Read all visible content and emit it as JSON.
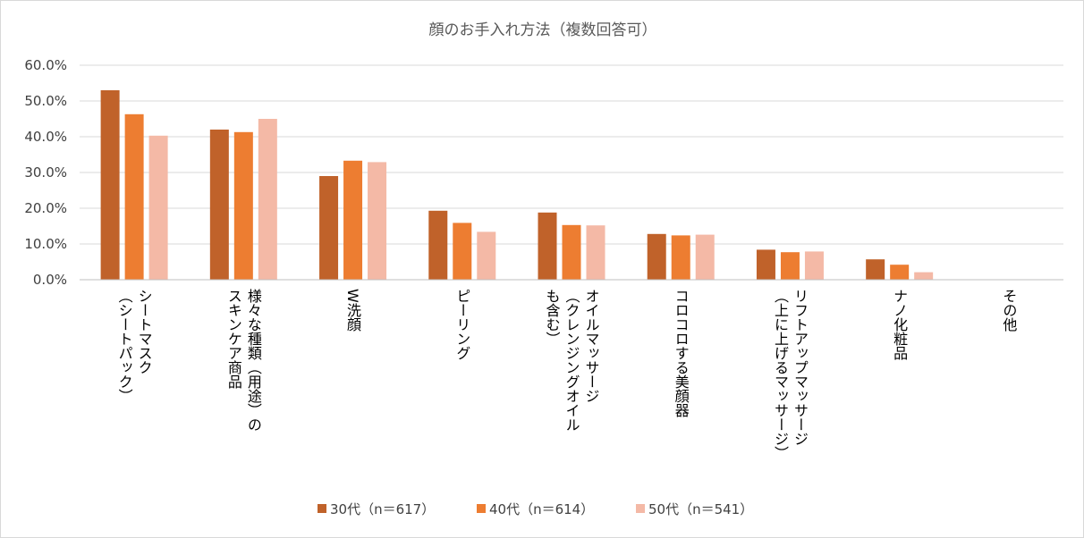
{
  "chart_data": {
    "type": "bar",
    "title": "顔のお手入れ方法（複数回答可）",
    "xlabel": "",
    "ylabel": "",
    "ylim": [
      0,
      60
    ],
    "yticks": [
      "0.0%",
      "10.0%",
      "20.0%",
      "30.0%",
      "40.0%",
      "50.0%",
      "60.0%"
    ],
    "grid": true,
    "legend_position": "bottom",
    "categories": [
      [
        "シートマスク",
        "（シートパック）"
      ],
      [
        "様々な種類（用途）の",
        "スキンケア商品"
      ],
      [
        "W洗顔"
      ],
      [
        "ピーリング"
      ],
      [
        "オイルマッサージ",
        "（クレンジングオイル",
        "も含む）"
      ],
      [
        "コロコロする美顔器"
      ],
      [
        "リフトアップマッサージ",
        "（上に上げるマッサージ）"
      ],
      [
        "ナノ化粧品"
      ],
      [
        "その他"
      ]
    ],
    "series": [
      {
        "name": "30代（n＝617）",
        "color": "#C0622A",
        "values": [
          53.0,
          42.0,
          29.0,
          19.3,
          18.8,
          12.8,
          8.4,
          5.7,
          0.0
        ]
      },
      {
        "name": "40代（n＝614）",
        "color": "#ED7D31",
        "values": [
          46.3,
          41.3,
          33.3,
          15.9,
          15.3,
          12.4,
          7.7,
          4.2,
          0.0
        ]
      },
      {
        "name": "50代（n＝541）",
        "color": "#F4B9A6",
        "values": [
          40.3,
          45.0,
          32.9,
          13.4,
          15.2,
          12.6,
          7.9,
          2.1,
          0.0
        ]
      }
    ]
  }
}
